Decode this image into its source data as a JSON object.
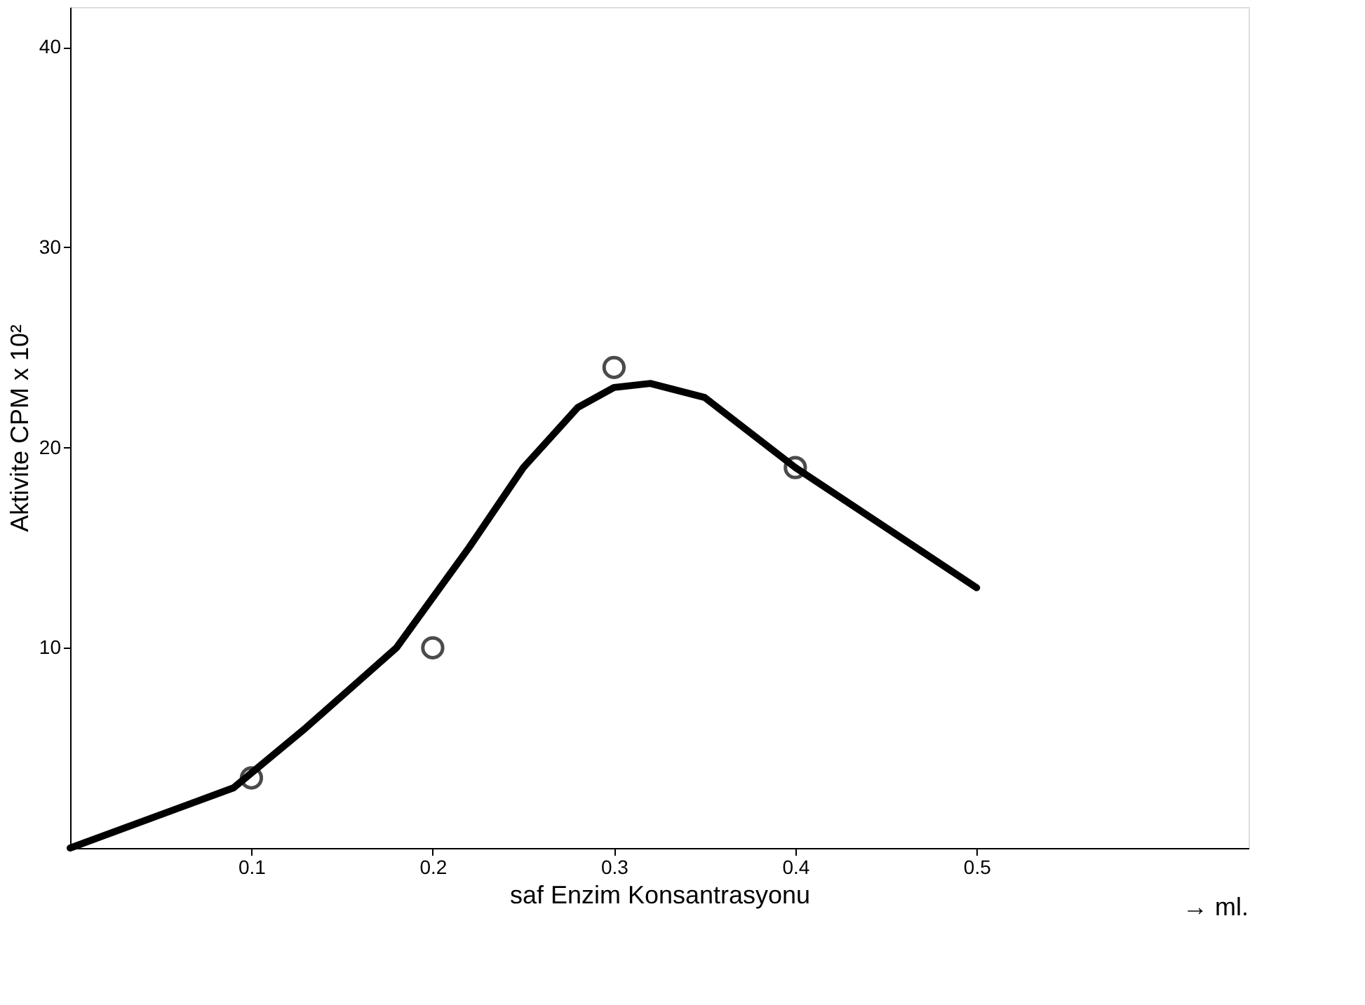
{
  "chart_data": {
    "type": "line",
    "xlabel": "saf Enzim Konsantrasyonu",
    "ylabel": "Aktivite CPM x 10²",
    "annotations": [
      "→ ml."
    ],
    "xlim": [
      0,
      0.65
    ],
    "xticks": [
      0.1,
      0.2,
      0.3,
      0.4,
      0.5
    ],
    "ylim": [
      0,
      42
    ],
    "yticks": [
      10,
      20,
      30,
      40
    ],
    "grid": false,
    "legend": false,
    "series": [
      {
        "color": "#000000",
        "line_style": "solid",
        "marker": "none",
        "x": [
          0,
          0.09,
          0.13,
          0.18,
          0.22,
          0.25,
          0.28,
          0.3,
          0.32,
          0.35,
          0.4,
          0.45,
          0.5
        ],
        "values": [
          0,
          3,
          6,
          10,
          15,
          19,
          22,
          23,
          23.2,
          22.5,
          19,
          16,
          13
        ]
      },
      {
        "type": "scatter",
        "color": "#000000",
        "marker": "circle",
        "x": [
          0.1,
          0.2,
          0.3,
          0.4
        ],
        "values": [
          3.5,
          10,
          24,
          19
        ]
      }
    ]
  }
}
